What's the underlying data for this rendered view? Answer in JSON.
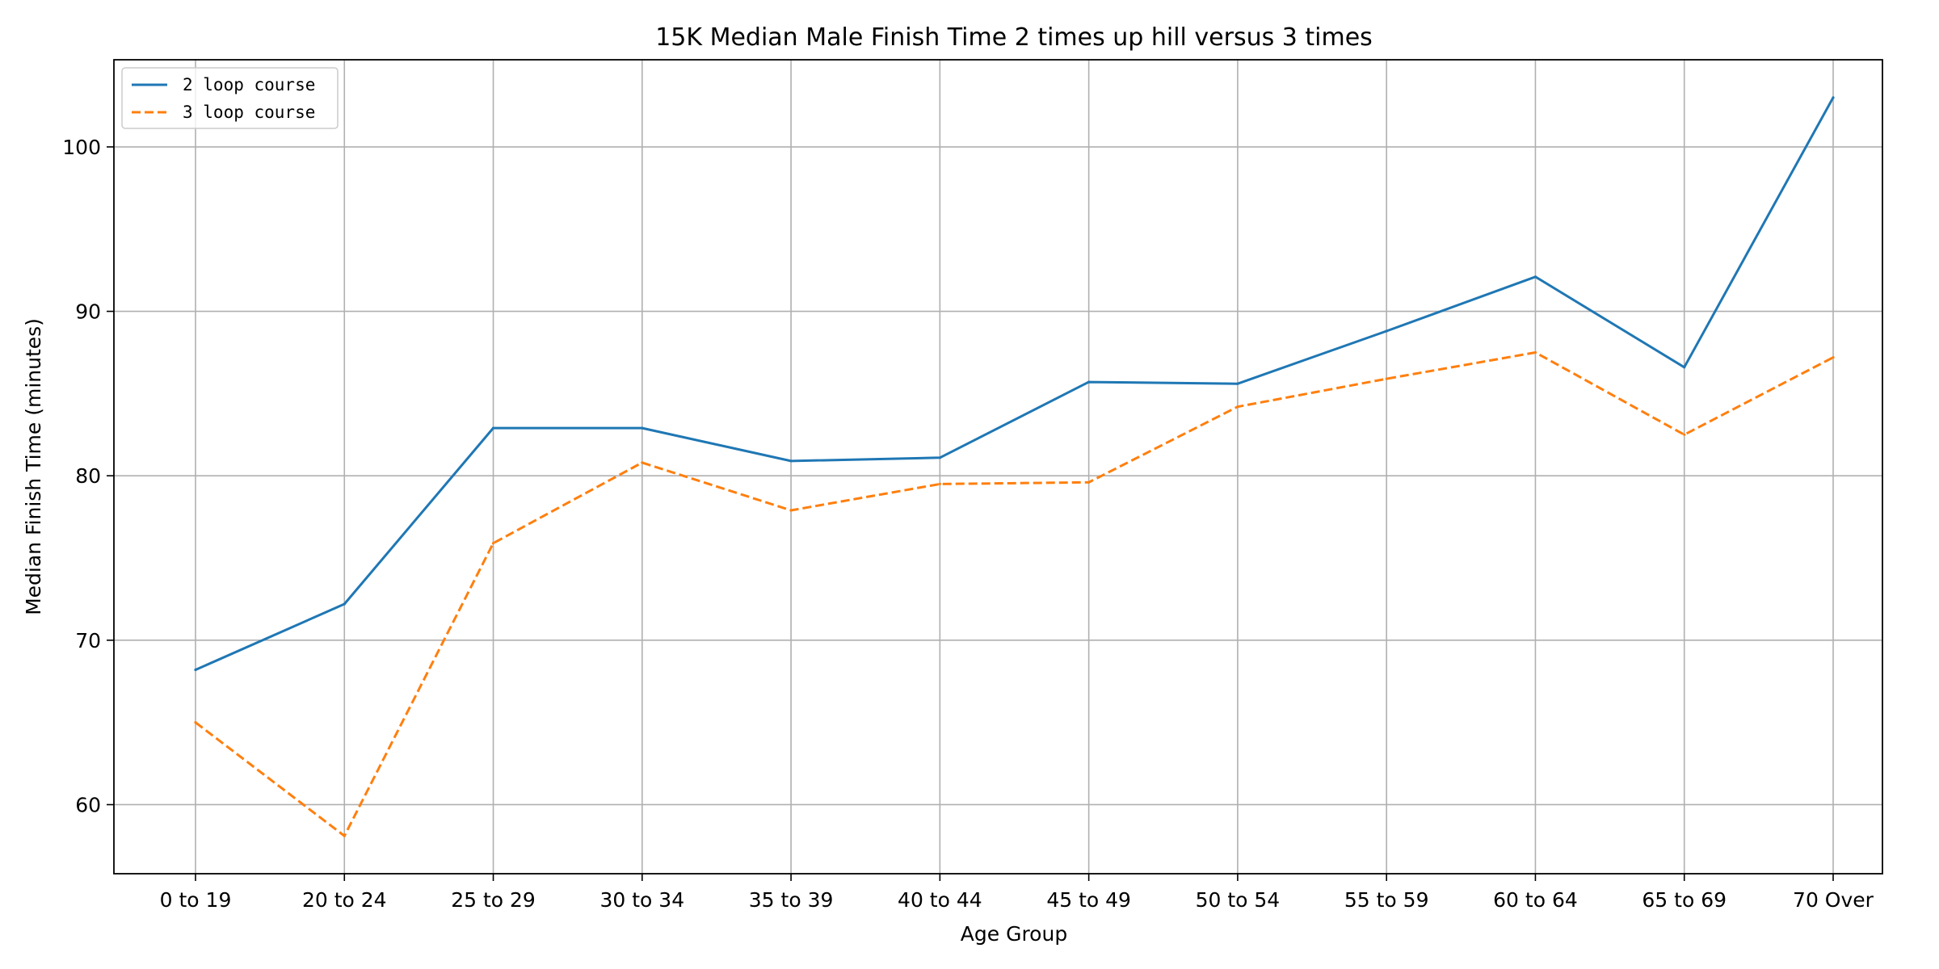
{
  "chart_data": {
    "type": "line",
    "title": "15K Median Male Finish Time 2 times up hill versus 3 times",
    "xlabel": "Age Group",
    "ylabel": "Median Finish Time (minutes)",
    "categories": [
      "0 to 19",
      "20 to 24",
      "25 to 29",
      "30 to 34",
      "35 to 39",
      "40 to 44",
      "45 to 49",
      "50 to 54",
      "55 to 59",
      "60 to 64",
      "65 to 69",
      "70 Over"
    ],
    "ylim": [
      55.8,
      105.3
    ],
    "yticks": [
      60,
      70,
      80,
      90,
      100
    ],
    "grid": true,
    "legend_position": "top-left",
    "series": [
      {
        "name": "2 loop course",
        "color": "#1f77b4",
        "style": "solid",
        "values": [
          68.2,
          72.2,
          82.9,
          82.9,
          80.9,
          81.1,
          85.7,
          85.6,
          88.8,
          92.1,
          86.6,
          103.0
        ]
      },
      {
        "name": "3 loop course",
        "color": "#ff7f0e",
        "style": "dashed",
        "values": [
          65.0,
          58.1,
          75.9,
          80.8,
          77.9,
          79.5,
          79.6,
          84.2,
          85.9,
          87.5,
          82.5,
          87.2
        ]
      }
    ]
  }
}
